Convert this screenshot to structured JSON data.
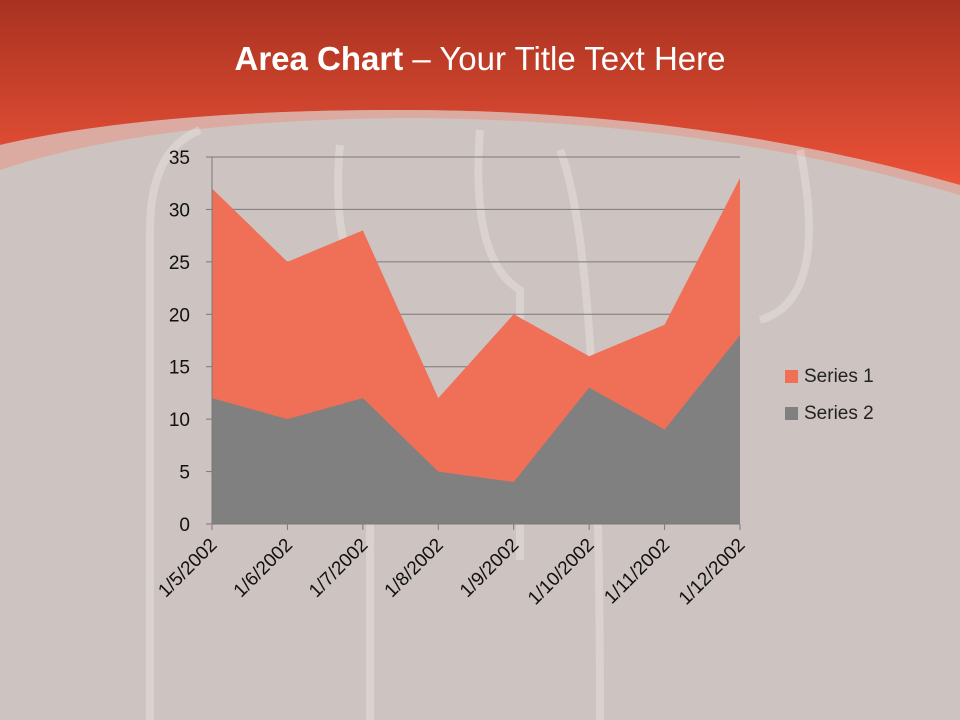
{
  "slide": {
    "title_bold": "Area Chart",
    "title_rest": " – Your Title Text Here"
  },
  "colors": {
    "header": "#e84e35",
    "background": "#cdc3c1",
    "series1": "#ef6f57",
    "series2": "#808080"
  },
  "chart_data": {
    "type": "area",
    "categories": [
      "1/5/2002",
      "1/6/2002",
      "1/7/2002",
      "1/8/2002",
      "1/9/2002",
      "1/10/2002",
      "1/11/2002",
      "1/12/2002"
    ],
    "series": [
      {
        "name": "Series 1",
        "values": [
          32,
          25,
          28,
          12,
          20,
          16,
          19,
          33
        ]
      },
      {
        "name": "Series 2",
        "values": [
          12,
          10,
          12,
          5,
          4,
          13,
          9,
          18
        ]
      }
    ],
    "ylim": [
      0,
      35
    ],
    "yticks": [
      0,
      5,
      10,
      15,
      20,
      25,
      30,
      35
    ],
    "grid": true,
    "legend": "right"
  }
}
